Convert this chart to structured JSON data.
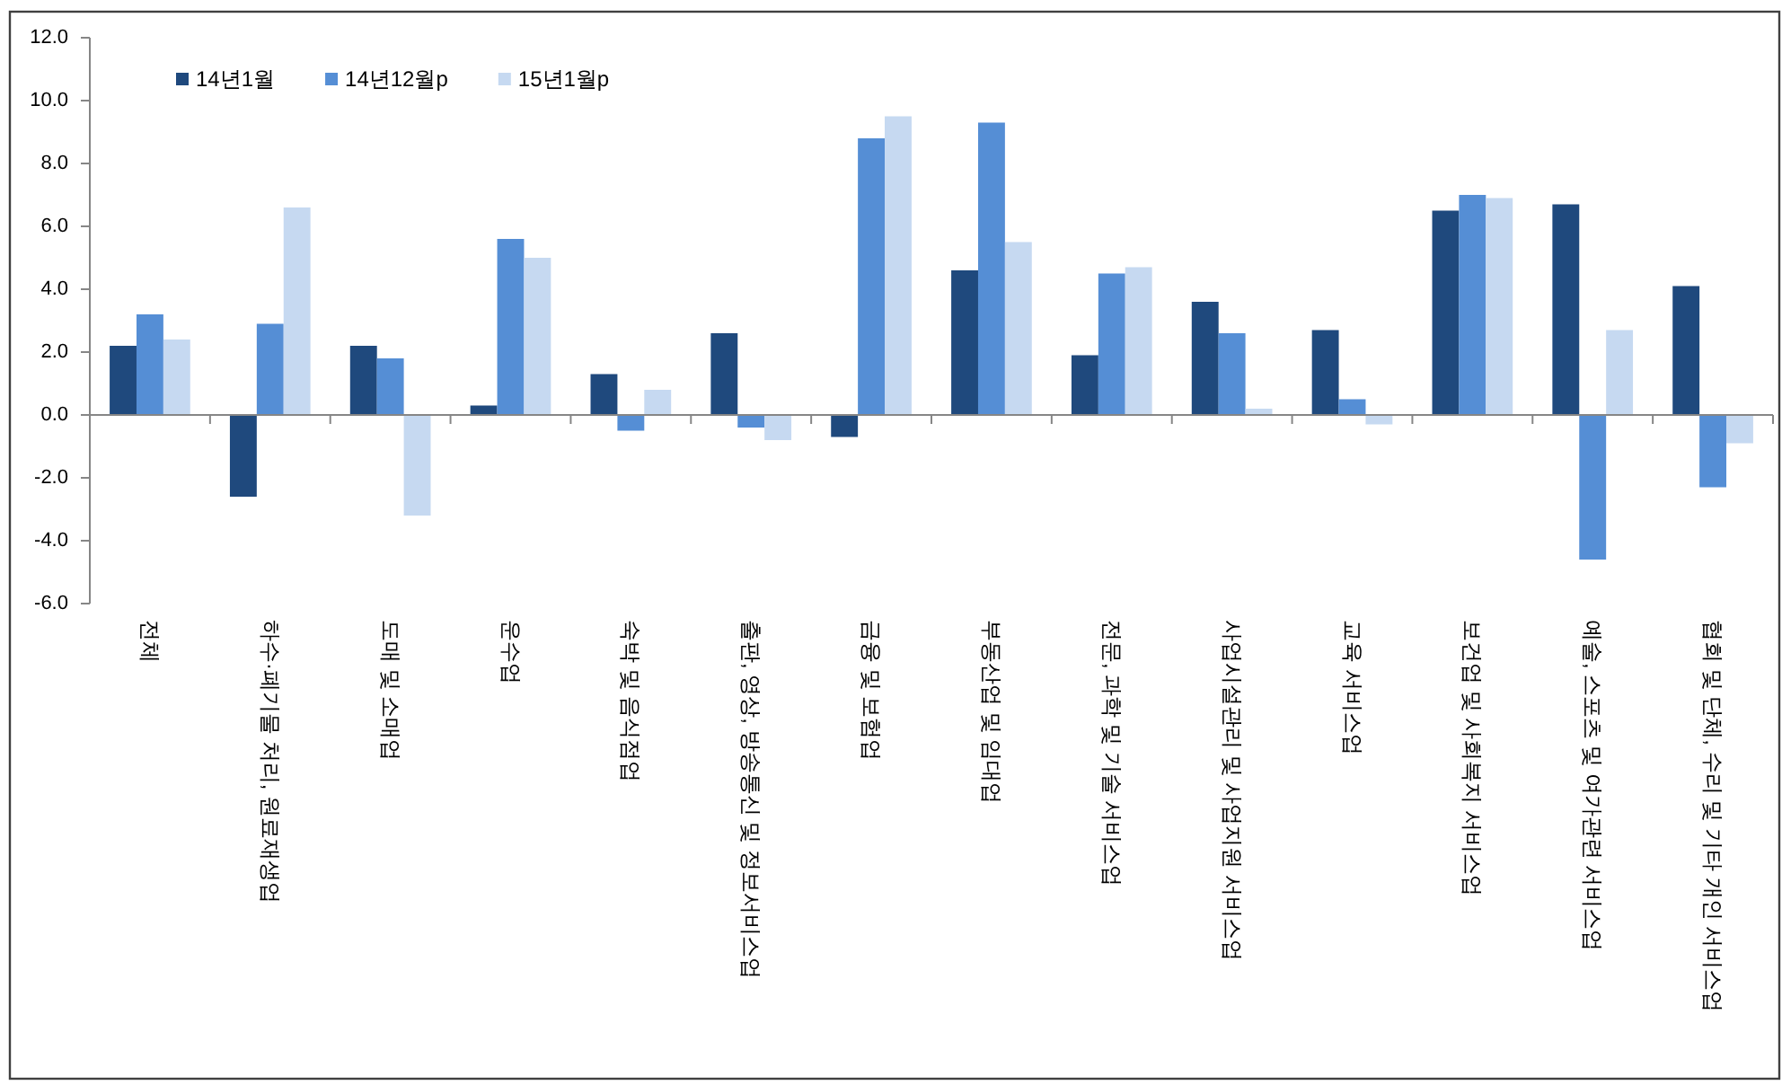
{
  "chart_data": {
    "type": "bar",
    "categories": [
      "전체",
      "하수·폐기물 처리, 원료재생업",
      "도매 및 소매업",
      "운수업",
      "숙박 및 음식점업",
      "출판, 영상, 방송통신 및 정보서비스업",
      "금융 및 보험업",
      "부동산업 및 임대업",
      "전문, 과학 및 기술 서비스업",
      "사업시설관리 및 사업지원 서비스업",
      "교육 서비스업",
      "보건업 및 사회복지 서비스업",
      "예술, 스포츠 및 여가관련 서비스업",
      "협회 및 단체, 수리 및 기타 개인 서비스업"
    ],
    "series": [
      {
        "name": "14년1월",
        "color": "#1F497D",
        "values": [
          2.2,
          -2.6,
          2.2,
          0.3,
          1.3,
          2.6,
          -0.7,
          4.6,
          1.9,
          3.6,
          2.7,
          6.5,
          6.7,
          4.1
        ]
      },
      {
        "name": "14년12월p",
        "color": "#558ED5",
        "values": [
          3.2,
          2.9,
          1.8,
          5.6,
          -0.5,
          -0.4,
          8.8,
          9.3,
          4.5,
          2.6,
          0.5,
          7.0,
          -4.6,
          -2.3
        ]
      },
      {
        "name": "15년1월p",
        "color": "#C6D9F1",
        "values": [
          2.4,
          6.6,
          -3.2,
          5.0,
          0.8,
          -0.8,
          9.5,
          5.5,
          4.7,
          0.2,
          -0.3,
          6.9,
          2.7,
          -0.9
        ]
      }
    ],
    "ylim": [
      -6,
      12
    ],
    "yticks": [
      {
        "value": -6,
        "label": "-6.0"
      },
      {
        "value": -4,
        "label": "-4.0"
      },
      {
        "value": -2,
        "label": "-2.0"
      },
      {
        "value": 0,
        "label": "0.0"
      },
      {
        "value": 2,
        "label": "2.0"
      },
      {
        "value": 4,
        "label": "4.0"
      },
      {
        "value": 6,
        "label": "6.0"
      },
      {
        "value": 8,
        "label": "8.0"
      },
      {
        "value": 10,
        "label": "10.0"
      },
      {
        "value": 12,
        "label": "12.0"
      }
    ],
    "legend": "top left"
  }
}
